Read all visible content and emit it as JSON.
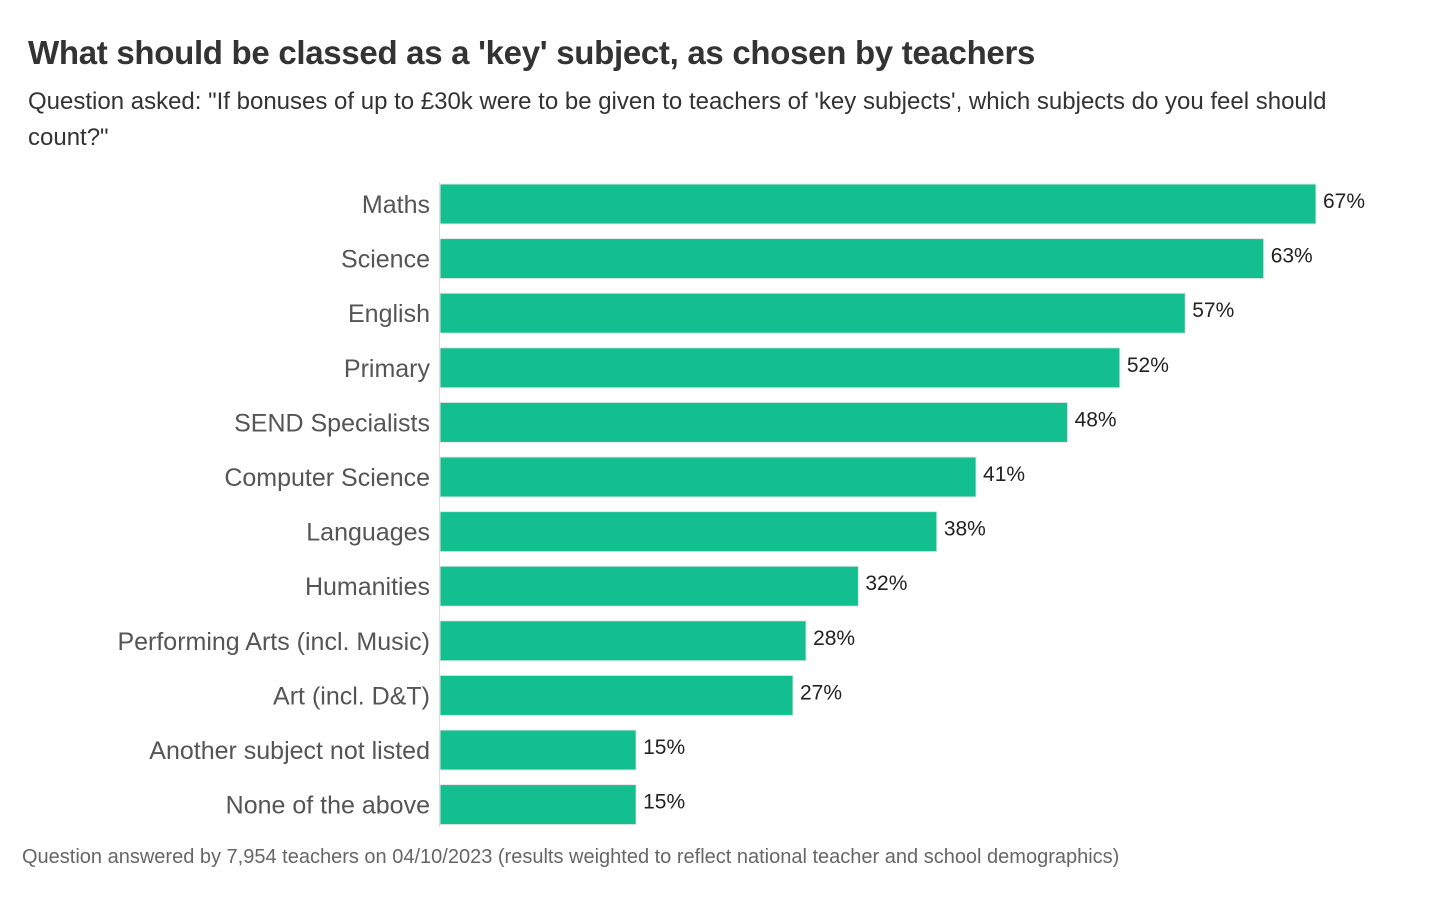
{
  "title": "What should be classed as a 'key' subject, as chosen by teachers",
  "subtitle": "Question asked: \"If bonuses of up to £30k were to be given to teachers of 'key subjects', which subjects do you feel should count?\"",
  "footer": "Question answered by 7,954 teachers on 04/10/2023 (results weighted to reflect national teacher and school demographics)",
  "colors": {
    "bar": "#13BE8F",
    "category_label": "#555555",
    "value_label": "#222222"
  },
  "chart_data": {
    "type": "bar",
    "orientation": "horizontal",
    "categories": [
      "Maths",
      "Science",
      "English",
      "Primary",
      "SEND Specialists",
      "Computer Science",
      "Languages",
      "Humanities",
      "Performing Arts (incl. Music)",
      "Art (incl. D&T)",
      "Another subject not listed",
      "None of the above"
    ],
    "values": [
      67,
      63,
      57,
      52,
      48,
      41,
      38,
      32,
      28,
      27,
      15,
      15
    ],
    "value_labels": [
      "67%",
      "63%",
      "57%",
      "52%",
      "48%",
      "41%",
      "38%",
      "32%",
      "28%",
      "27%",
      "15%",
      "15%"
    ],
    "title": "What should be classed as a 'key' subject, as chosen by teachers",
    "xlim": [
      0,
      67
    ],
    "grid": false,
    "legend": "none"
  }
}
